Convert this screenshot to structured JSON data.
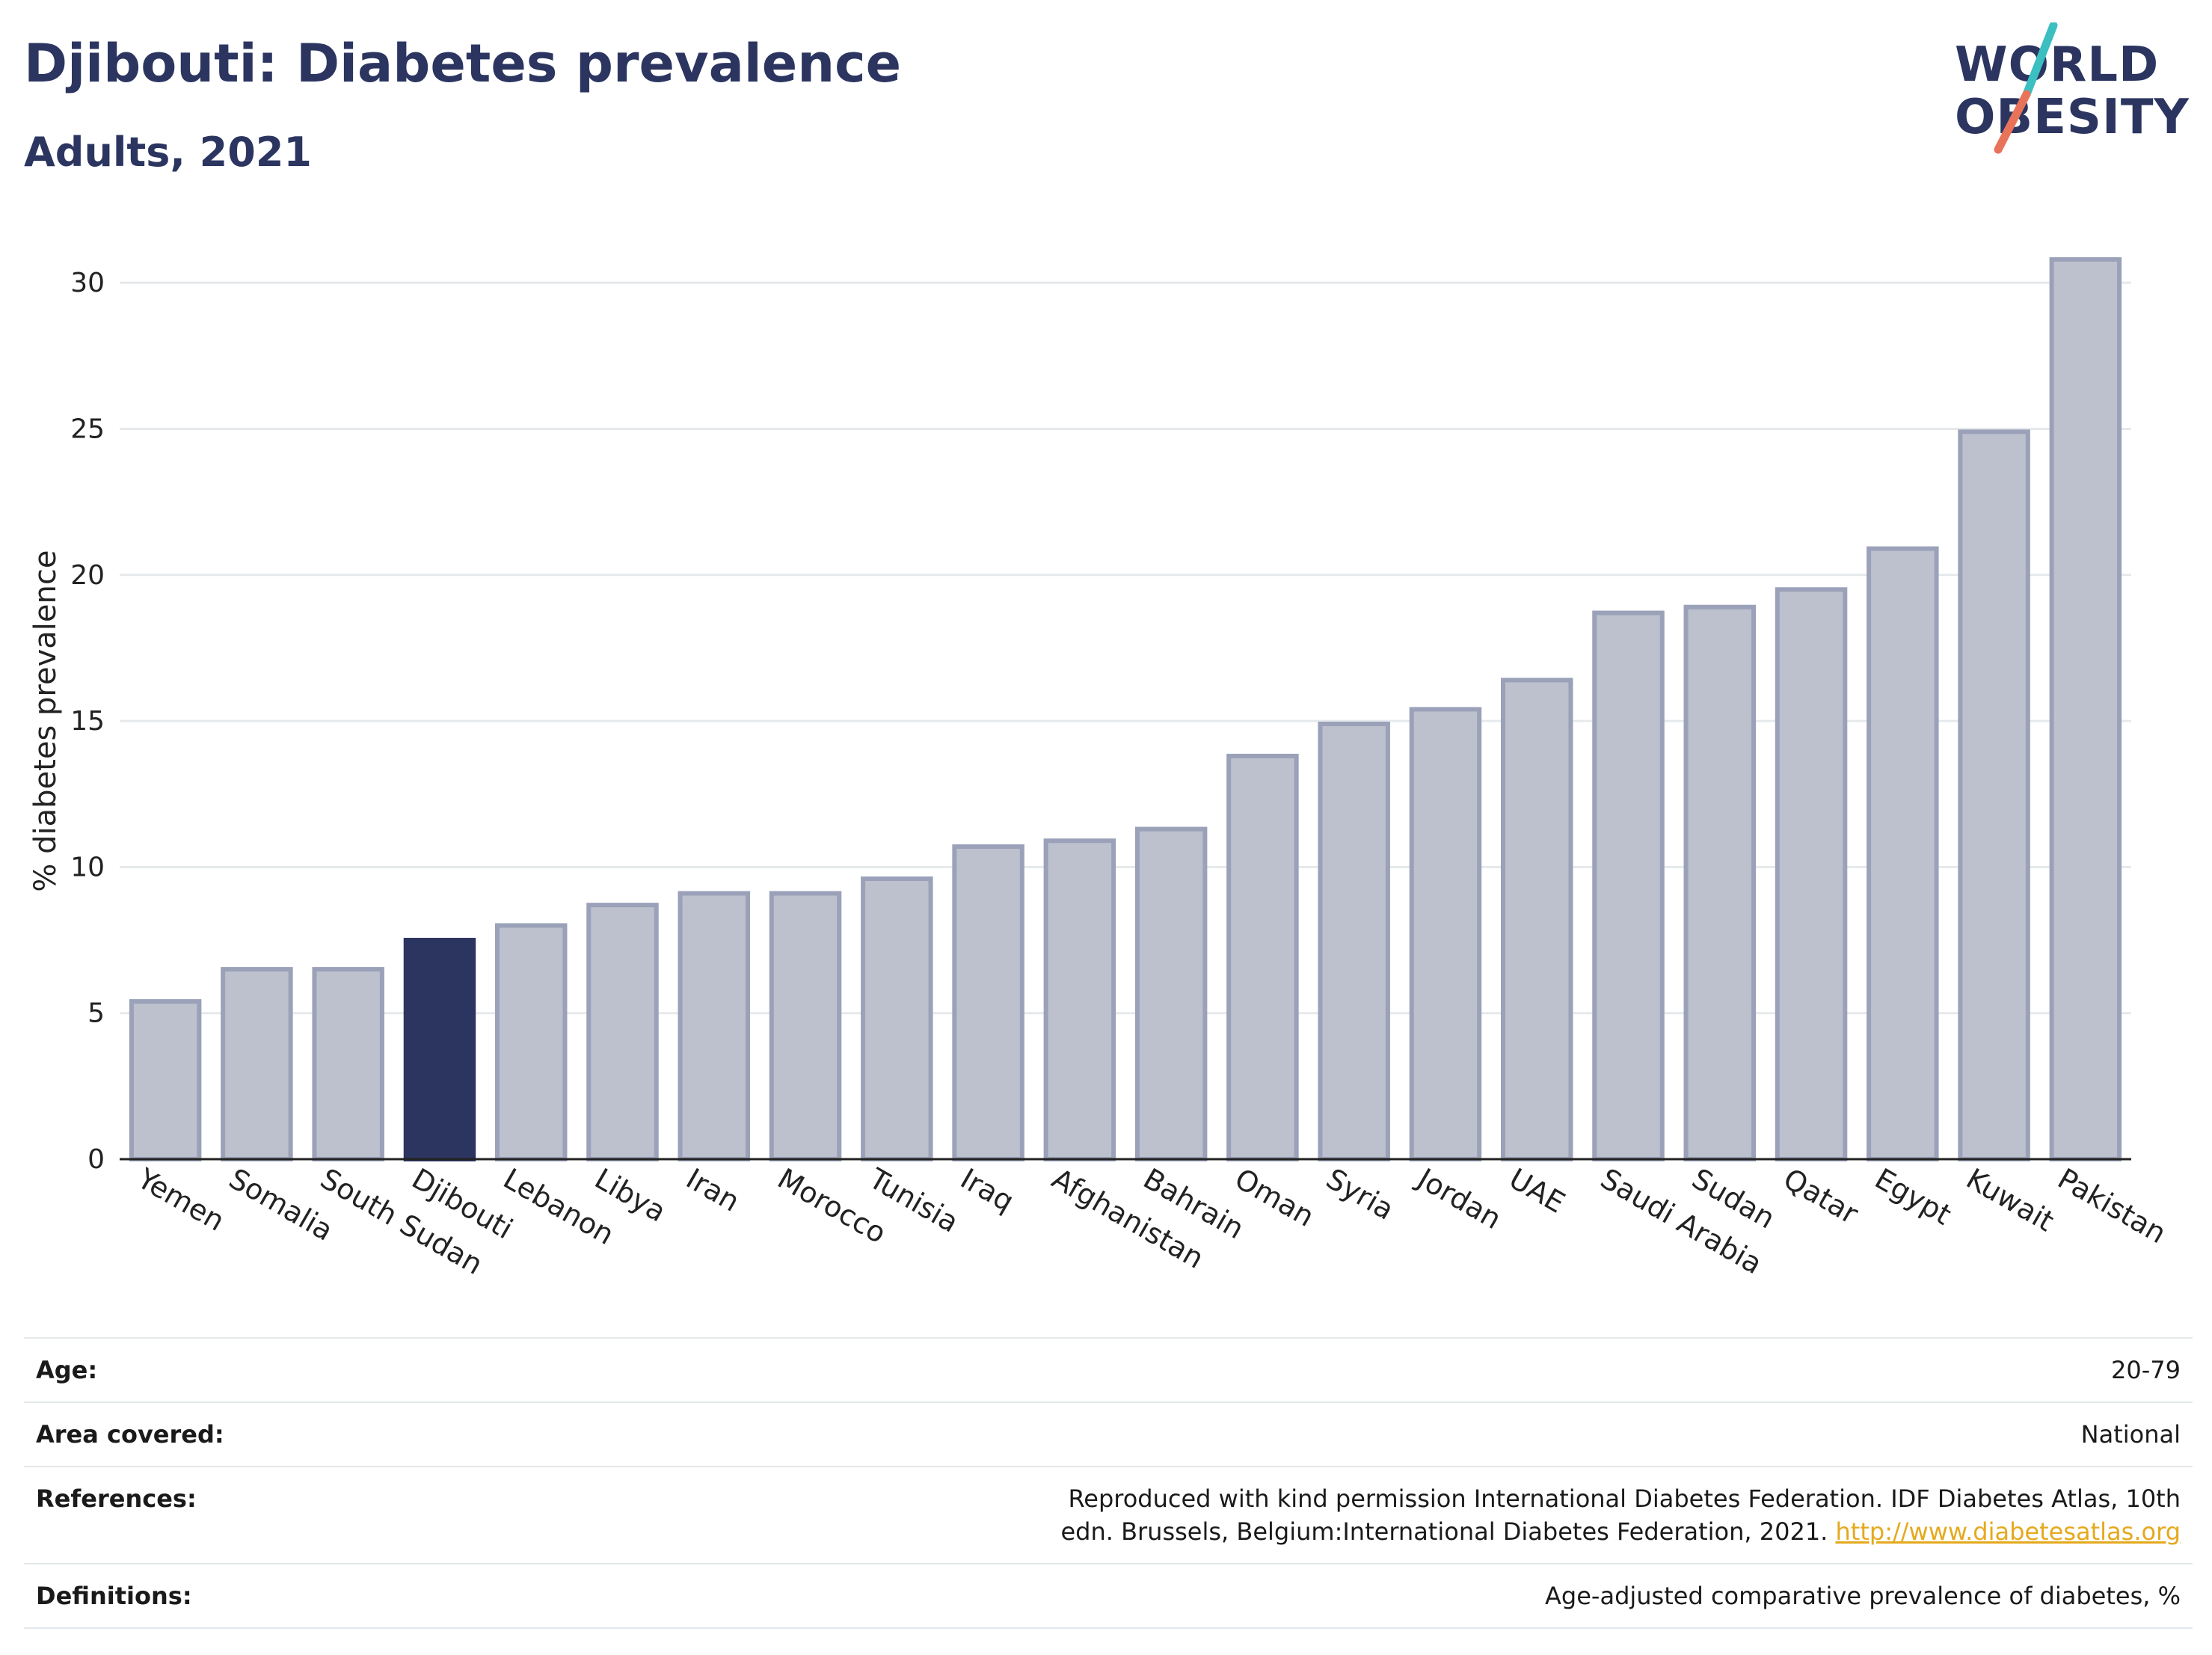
{
  "header": {
    "title": "Djibouti: Diabetes prevalence",
    "subtitle": "Adults, 2021"
  },
  "logo": {
    "line1": "WORLD",
    "line2": "OBESITY",
    "colors": {
      "text": "#2b3560",
      "slash_top": "#3bbfc0",
      "slash_bottom": "#e8735a"
    }
  },
  "colors": {
    "bar": "#bdc1ce",
    "bar_border": "#9aa1b8",
    "highlight": "#2b3560",
    "grid": "#e6e9ec",
    "axis": "#222222"
  },
  "chart_data": {
    "type": "bar",
    "ylabel": "% diabetes prevalence",
    "ylim": [
      0,
      32
    ],
    "yticks": [
      0,
      5,
      10,
      15,
      20,
      25,
      30
    ],
    "grid": true,
    "highlight": "Djibouti",
    "categories": [
      "Yemen",
      "Somalia",
      "South Sudan",
      "Djibouti",
      "Lebanon",
      "Libya",
      "Iran",
      "Morocco",
      "Tunisia",
      "Iraq",
      "Afghanistan",
      "Bahrain",
      "Oman",
      "Syria",
      "Jordan",
      "UAE",
      "Saudi Arabia",
      "Sudan",
      "Qatar",
      "Egypt",
      "Kuwait",
      "Pakistan"
    ],
    "values": [
      5.4,
      6.5,
      6.5,
      7.5,
      8.0,
      8.7,
      9.1,
      9.1,
      9.6,
      10.7,
      10.9,
      11.3,
      13.8,
      14.9,
      15.4,
      16.4,
      18.7,
      18.9,
      19.5,
      20.9,
      24.9,
      30.8
    ]
  },
  "info": {
    "age_label": "Age:",
    "age_value": "20-79",
    "area_label": "Area covered:",
    "area_value": "National",
    "references_label": "References:",
    "references_text": "Reproduced with kind permission International Diabetes Federation.  IDF Diabetes Atlas, 10th edn. Brussels, Belgium:International Diabetes Federation, 2021. ",
    "references_link": "http://www.diabetesatlas.org",
    "definitions_label": "Definitions:",
    "definitions_value": "Age-adjusted comparative prevalence of diabetes, %"
  }
}
